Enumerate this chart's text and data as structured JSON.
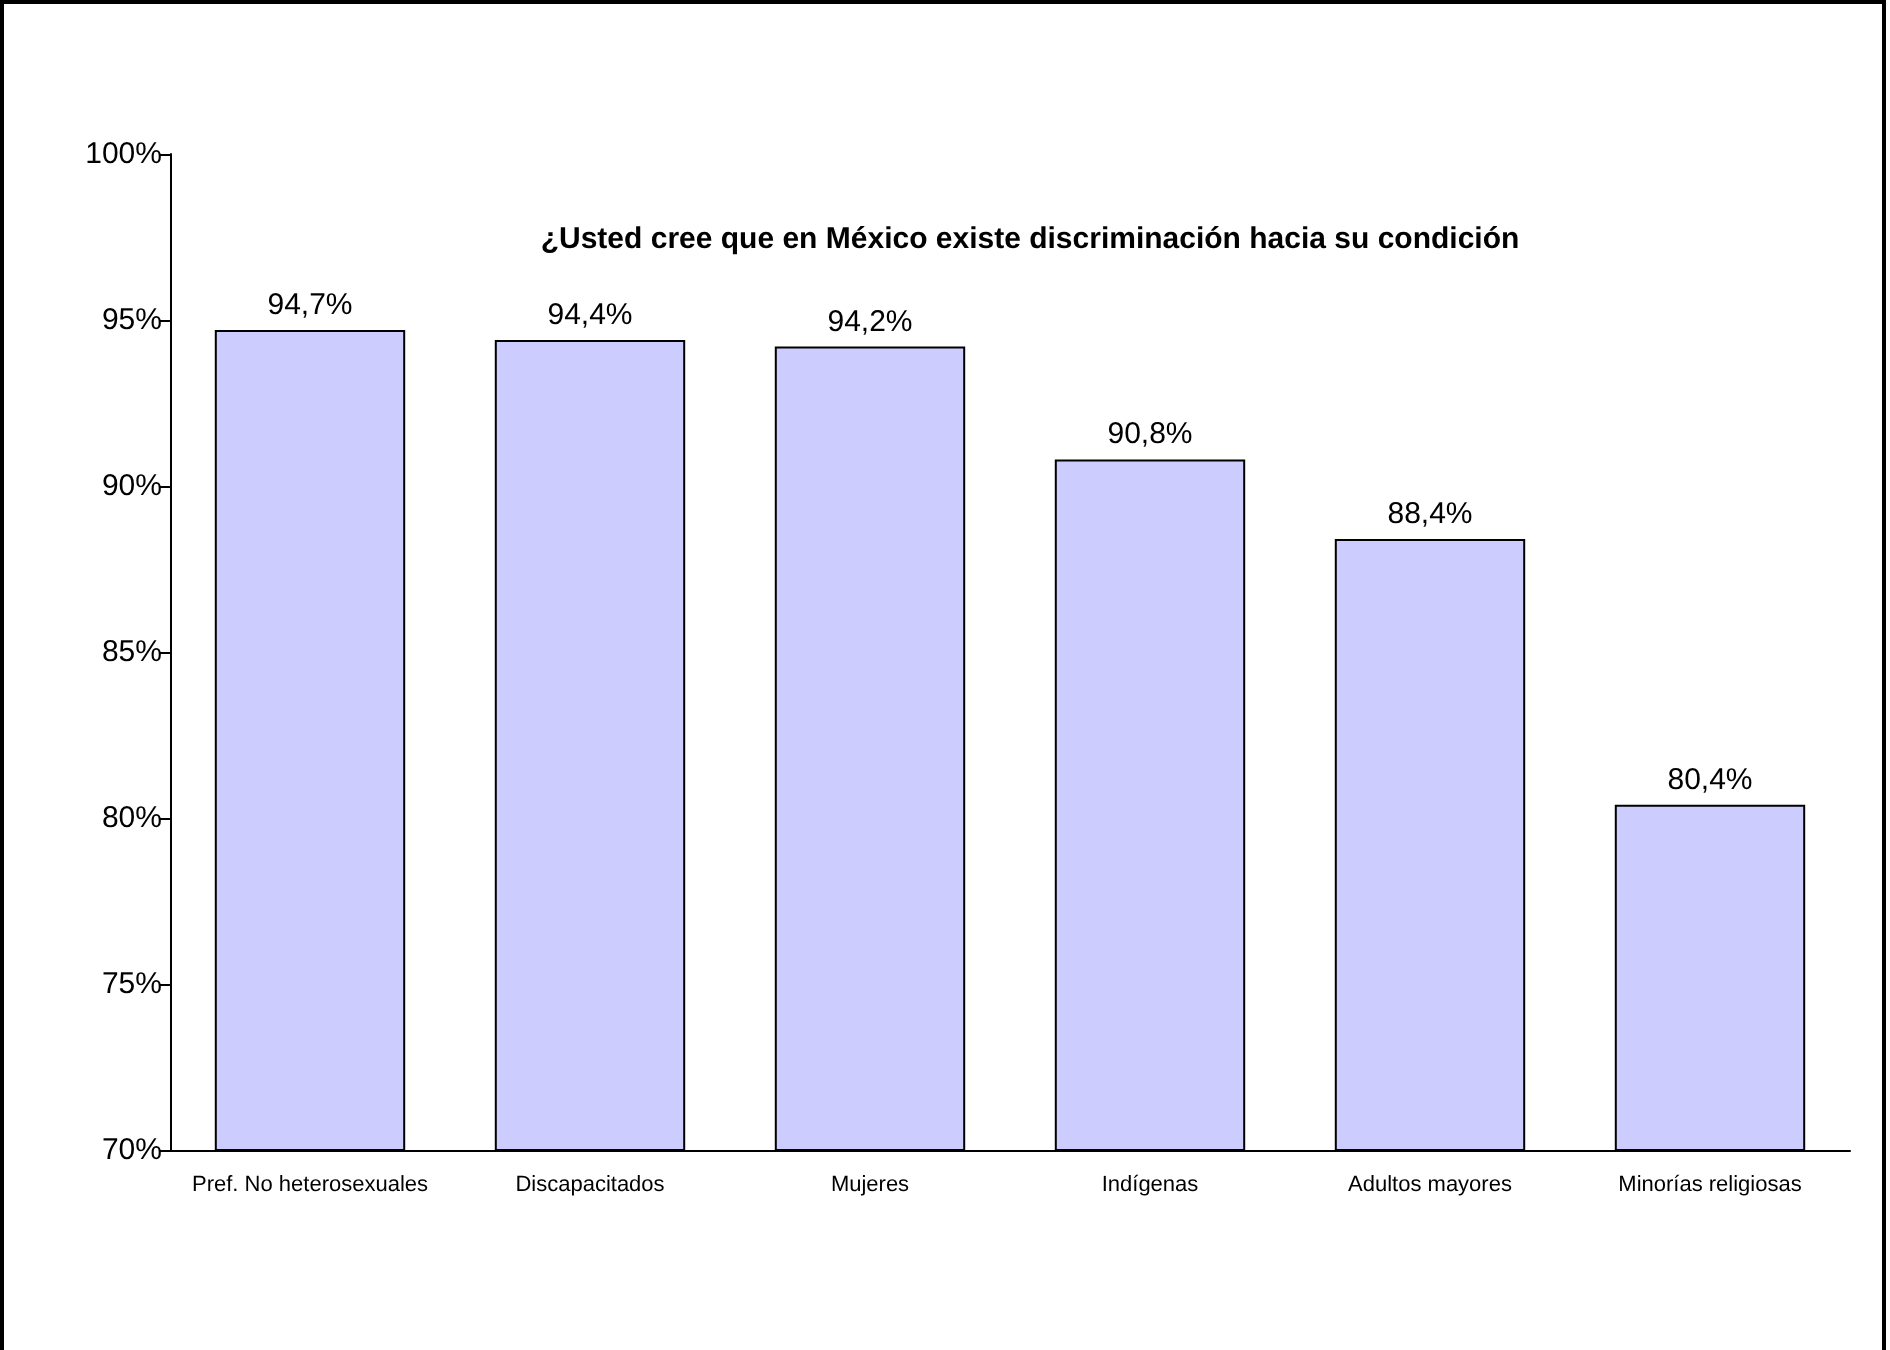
{
  "chart_data": {
    "type": "bar",
    "title": "¿Usted cree que en México existe discriminación hacia su condición",
    "categories": [
      "Pref. No heterosexuales",
      "Discapacitados",
      "Mujeres",
      "Indígenas",
      "Adultos mayores",
      "Minorías religiosas"
    ],
    "values": [
      94.7,
      94.4,
      94.2,
      90.8,
      88.4,
      80.4
    ],
    "value_labels": [
      "94,7%",
      "94,4%",
      "94,2%",
      "90,8%",
      "88,4%",
      "80,4%"
    ],
    "color": "#ccccff",
    "ylim": [
      70,
      100
    ],
    "yticks": [
      {
        "value": 70,
        "label": "70%"
      },
      {
        "value": 75,
        "label": "75%"
      },
      {
        "value": 80,
        "label": "80%"
      },
      {
        "value": 85,
        "label": "85%"
      },
      {
        "value": 90,
        "label": "90%"
      },
      {
        "value": 95,
        "label": "95%"
      },
      {
        "value": 100,
        "label": "100%"
      }
    ],
    "grid": false
  }
}
